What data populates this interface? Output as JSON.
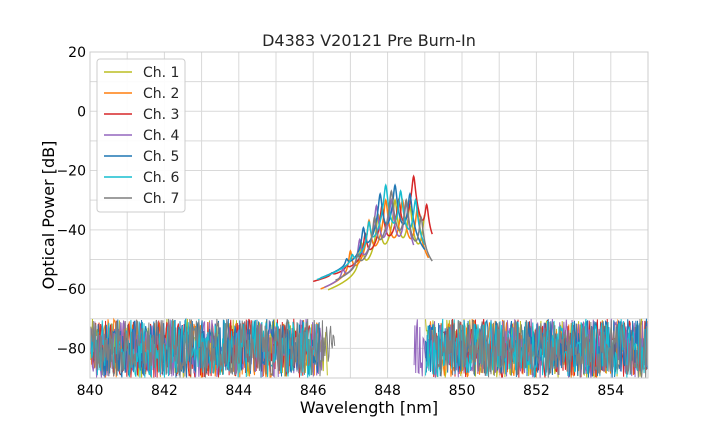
{
  "chart_data": {
    "type": "line",
    "title": "D4383 V20121 Pre Burn-In",
    "xlabel": "Wavelength [nm]",
    "ylabel": "Optical Power [dB]",
    "xlim": [
      840,
      855
    ],
    "ylim": [
      -90,
      20
    ],
    "xticks": [
      840,
      842,
      844,
      846,
      848,
      850,
      852,
      854
    ],
    "yticks": [
      -80,
      -60,
      -40,
      -20,
      0,
      20
    ],
    "grid": true,
    "legend_position": "top-left",
    "noise_floor": {
      "mean": -78,
      "min": -90,
      "max": -70
    },
    "series": [
      {
        "name": "Ch. 1",
        "color": "#bcbd22",
        "noise_x_range": [
          840,
          855
        ],
        "gap_x_range": [
          846.4,
          849.0
        ],
        "peaks": [
          {
            "x": 847.3,
            "y": -45
          },
          {
            "x": 847.75,
            "y": -35
          },
          {
            "x": 848.2,
            "y": -30
          },
          {
            "x": 848.6,
            "y": -32
          },
          {
            "x": 849.0,
            "y": -35
          }
        ]
      },
      {
        "name": "Ch. 2",
        "color": "#ff7f0e",
        "noise_x_range": [
          840,
          855
        ],
        "gap_x_range": [
          846.2,
          849.1
        ],
        "peaks": [
          {
            "x": 847.0,
            "y": -48
          },
          {
            "x": 847.5,
            "y": -37
          },
          {
            "x": 847.95,
            "y": -30
          },
          {
            "x": 848.4,
            "y": -30
          },
          {
            "x": 848.8,
            "y": -33
          }
        ]
      },
      {
        "name": "Ch. 3",
        "color": "#d62728",
        "noise_x_range": [
          840,
          855
        ],
        "gap_x_range": [
          846.0,
          849.2
        ],
        "peaks": [
          {
            "x": 846.5,
            "y": -62
          },
          {
            "x": 846.9,
            "y": -58
          },
          {
            "x": 847.4,
            "y": -42
          },
          {
            "x": 847.85,
            "y": -32
          },
          {
            "x": 848.3,
            "y": -30
          },
          {
            "x": 848.7,
            "y": -22
          },
          {
            "x": 849.05,
            "y": -32
          }
        ]
      },
      {
        "name": "Ch. 4",
        "color": "#9467bd",
        "noise_x_range": [
          840,
          855
        ],
        "gap_x_range": [
          846.3,
          848.7
        ],
        "peaks": [
          {
            "x": 846.8,
            "y": -56
          },
          {
            "x": 847.25,
            "y": -44
          },
          {
            "x": 847.7,
            "y": -32
          },
          {
            "x": 848.1,
            "y": -30
          },
          {
            "x": 848.5,
            "y": -31
          }
        ]
      },
      {
        "name": "Ch. 5",
        "color": "#1f77b4",
        "noise_x_range": [
          840,
          855
        ],
        "gap_x_range": [
          846.2,
          849.0
        ],
        "peaks": [
          {
            "x": 846.9,
            "y": -54
          },
          {
            "x": 847.35,
            "y": -40
          },
          {
            "x": 847.8,
            "y": -28
          },
          {
            "x": 848.2,
            "y": -25
          },
          {
            "x": 848.6,
            "y": -28
          }
        ]
      },
      {
        "name": "Ch. 6",
        "color": "#17becf",
        "noise_x_range": [
          840,
          855
        ],
        "gap_x_range": [
          846.1,
          849.0
        ],
        "peaks": [
          {
            "x": 847.05,
            "y": -52
          },
          {
            "x": 847.5,
            "y": -38
          },
          {
            "x": 847.95,
            "y": -25
          },
          {
            "x": 848.35,
            "y": -27
          },
          {
            "x": 848.75,
            "y": -30
          }
        ]
      },
      {
        "name": "Ch. 7",
        "color": "#7f7f7f",
        "noise_x_range": [
          840,
          855
        ],
        "gap_x_range": [
          846.6,
          849.2
        ],
        "peaks": [
          {
            "x": 847.2,
            "y": -50
          },
          {
            "x": 847.65,
            "y": -36
          },
          {
            "x": 848.1,
            "y": -27
          },
          {
            "x": 848.5,
            "y": -30
          },
          {
            "x": 848.9,
            "y": -36
          }
        ]
      }
    ]
  }
}
